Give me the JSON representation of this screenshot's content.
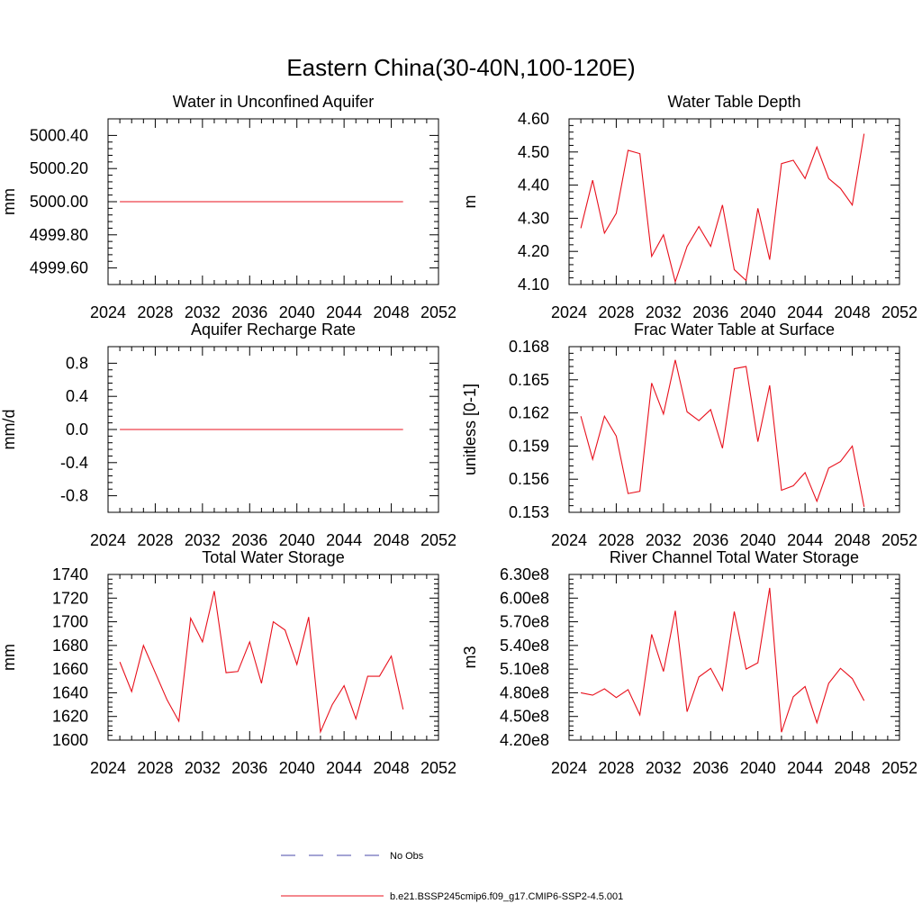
{
  "figure": {
    "title": "Eastern China(30-40N,100-120E)",
    "legend": [
      {
        "label": "No Obs",
        "style": "dashed",
        "color": "#4a4aa8"
      },
      {
        "label": "b.e21.BSSP245cmip6.f09_g17.CMIP6-SSP2-4.5.001",
        "style": "solid",
        "color": "#e8101c"
      }
    ]
  },
  "chart_data": [
    {
      "type": "line",
      "title": "Water in Unconfined Aquifer",
      "xlabel": "",
      "ylabel": "mm",
      "xlim": [
        2024,
        2052
      ],
      "ylim": [
        4999.5,
        5000.5
      ],
      "xticks": [
        2024,
        2028,
        2032,
        2036,
        2040,
        2044,
        2048,
        2052
      ],
      "yticks": [
        4999.6,
        4999.8,
        5000.0,
        5000.2,
        5000.4
      ],
      "ytick_labels": [
        "4999.60",
        "4999.80",
        "5000.00",
        "5000.20",
        "5000.40"
      ],
      "x": [
        2025,
        2026,
        2027,
        2028,
        2029,
        2030,
        2031,
        2032,
        2033,
        2034,
        2035,
        2036,
        2037,
        2038,
        2039,
        2040,
        2041,
        2042,
        2043,
        2044,
        2045,
        2046,
        2047,
        2048,
        2049
      ],
      "series": [
        {
          "name": "b.e21.BSSP245cmip6.f09_g17.CMIP6-SSP2-4.5.001",
          "color": "#e8101c",
          "values": [
            5000,
            5000,
            5000,
            5000,
            5000,
            5000,
            5000,
            5000,
            5000,
            5000,
            5000,
            5000,
            5000,
            5000,
            5000,
            5000,
            5000,
            5000,
            5000,
            5000,
            5000,
            5000,
            5000,
            5000,
            5000
          ]
        }
      ]
    },
    {
      "type": "line",
      "title": "Water Table Depth",
      "xlabel": "",
      "ylabel": "m",
      "xlim": [
        2024,
        2052
      ],
      "ylim": [
        4.1,
        4.6
      ],
      "xticks": [
        2024,
        2028,
        2032,
        2036,
        2040,
        2044,
        2048,
        2052
      ],
      "yticks": [
        4.1,
        4.2,
        4.3,
        4.4,
        4.5,
        4.6
      ],
      "ytick_labels": [
        "4.10",
        "4.20",
        "4.30",
        "4.40",
        "4.50",
        "4.60"
      ],
      "x": [
        2025,
        2026,
        2027,
        2028,
        2029,
        2030,
        2031,
        2032,
        2033,
        2034,
        2035,
        2036,
        2037,
        2038,
        2039,
        2040,
        2041,
        2042,
        2043,
        2044,
        2045,
        2046,
        2047,
        2048,
        2049
      ],
      "series": [
        {
          "name": "b.e21.BSSP245cmip6.f09_g17.CMIP6-SSP2-4.5.001",
          "color": "#e8101c",
          "values": [
            4.27,
            4.415,
            4.255,
            4.315,
            4.505,
            4.495,
            4.185,
            4.25,
            4.108,
            4.215,
            4.275,
            4.215,
            4.34,
            4.145,
            4.112,
            4.33,
            4.175,
            4.465,
            4.475,
            4.42,
            4.515,
            4.42,
            4.39,
            4.34,
            4.555
          ]
        }
      ]
    },
    {
      "type": "line",
      "title": "Aquifer Recharge Rate",
      "xlabel": "",
      "ylabel": "mm/d",
      "xlim": [
        2024,
        2052
      ],
      "ylim": [
        -1.0,
        1.0
      ],
      "xticks": [
        2024,
        2028,
        2032,
        2036,
        2040,
        2044,
        2048,
        2052
      ],
      "yticks": [
        -0.8,
        -0.4,
        0.0,
        0.4,
        0.8
      ],
      "ytick_labels": [
        "-0.8",
        "-0.4",
        "0.0",
        "0.4",
        "0.8"
      ],
      "x": [
        2025,
        2026,
        2027,
        2028,
        2029,
        2030,
        2031,
        2032,
        2033,
        2034,
        2035,
        2036,
        2037,
        2038,
        2039,
        2040,
        2041,
        2042,
        2043,
        2044,
        2045,
        2046,
        2047,
        2048,
        2049
      ],
      "series": [
        {
          "name": "b.e21.BSSP245cmip6.f09_g17.CMIP6-SSP2-4.5.001",
          "color": "#e8101c",
          "values": [
            0,
            0,
            0,
            0,
            0,
            0,
            0,
            0,
            0,
            0,
            0,
            0,
            0,
            0,
            0,
            0,
            0,
            0,
            0,
            0,
            0,
            0,
            0,
            0,
            0
          ]
        }
      ]
    },
    {
      "type": "line",
      "title": "Frac Water Table at Surface",
      "xlabel": "",
      "ylabel": "unitless [0-1]",
      "xlim": [
        2024,
        2052
      ],
      "ylim": [
        0.153,
        0.168
      ],
      "xticks": [
        2024,
        2028,
        2032,
        2036,
        2040,
        2044,
        2048,
        2052
      ],
      "yticks": [
        0.153,
        0.156,
        0.159,
        0.162,
        0.165,
        0.168
      ],
      "ytick_labels": [
        "0.153",
        "0.156",
        "0.159",
        "0.162",
        "0.165",
        "0.168"
      ],
      "x": [
        2025,
        2026,
        2027,
        2028,
        2029,
        2030,
        2031,
        2032,
        2033,
        2034,
        2035,
        2036,
        2037,
        2038,
        2039,
        2040,
        2041,
        2042,
        2043,
        2044,
        2045,
        2046,
        2047,
        2048,
        2049
      ],
      "series": [
        {
          "name": "b.e21.BSSP245cmip6.f09_g17.CMIP6-SSP2-4.5.001",
          "color": "#e8101c",
          "values": [
            0.1617,
            0.1578,
            0.1617,
            0.1599,
            0.1547,
            0.1549,
            0.1647,
            0.1619,
            0.1668,
            0.1621,
            0.1613,
            0.1623,
            0.1588,
            0.166,
            0.1662,
            0.1594,
            0.1645,
            0.155,
            0.1554,
            0.1566,
            0.154,
            0.157,
            0.1576,
            0.159,
            0.1535
          ]
        }
      ]
    },
    {
      "type": "line",
      "title": "Total Water Storage",
      "xlabel": "",
      "ylabel": "mm",
      "xlim": [
        2024,
        2052
      ],
      "ylim": [
        1600,
        1740
      ],
      "xticks": [
        2024,
        2028,
        2032,
        2036,
        2040,
        2044,
        2048,
        2052
      ],
      "yticks": [
        1600,
        1620,
        1640,
        1660,
        1680,
        1700,
        1720,
        1740
      ],
      "ytick_labels": [
        "1600",
        "1620",
        "1640",
        "1660",
        "1680",
        "1700",
        "1720",
        "1740"
      ],
      "x": [
        2025,
        2026,
        2027,
        2028,
        2029,
        2030,
        2031,
        2032,
        2033,
        2034,
        2035,
        2036,
        2037,
        2038,
        2039,
        2040,
        2041,
        2042,
        2043,
        2044,
        2045,
        2046,
        2047,
        2048,
        2049
      ],
      "series": [
        {
          "name": "b.e21.BSSP245cmip6.f09_g17.CMIP6-SSP2-4.5.001",
          "color": "#e8101c",
          "values": [
            1666,
            1641,
            1680,
            1657,
            1634,
            1616,
            1703,
            1683,
            1726,
            1657,
            1658,
            1683,
            1648,
            1700,
            1693,
            1664,
            1704,
            1607,
            1630,
            1646,
            1618,
            1654,
            1654,
            1671,
            1626
          ]
        }
      ]
    },
    {
      "type": "line",
      "title": "River Channel Total Water Storage",
      "xlabel": "",
      "ylabel": "m3",
      "xlim": [
        2024,
        2052
      ],
      "ylim": [
        420000000,
        630000000
      ],
      "xticks": [
        2024,
        2028,
        2032,
        2036,
        2040,
        2044,
        2048,
        2052
      ],
      "yticks": [
        420000000,
        450000000,
        480000000,
        510000000,
        540000000,
        570000000,
        600000000,
        630000000
      ],
      "ytick_labels": [
        "4.20e8",
        "4.50e8",
        "4.80e8",
        "5.10e8",
        "5.40e8",
        "5.70e8",
        "6.00e8",
        "6.30e8"
      ],
      "x": [
        2025,
        2026,
        2027,
        2028,
        2029,
        2030,
        2031,
        2032,
        2033,
        2034,
        2035,
        2036,
        2037,
        2038,
        2039,
        2040,
        2041,
        2042,
        2043,
        2044,
        2045,
        2046,
        2047,
        2048,
        2049
      ],
      "series": [
        {
          "name": "b.e21.BSSP245cmip6.f09_g17.CMIP6-SSP2-4.5.001",
          "color": "#e8101c",
          "values": [
            480000000,
            477000000,
            485000000,
            474000000,
            484000000,
            452000000,
            554000000,
            507000000,
            584000000,
            456000000,
            500000000,
            511000000,
            483000000,
            583000000,
            510000000,
            518000000,
            613000000,
            430000000,
            475000000,
            488000000,
            442000000,
            492000000,
            511000000,
            498000000,
            470000000
          ]
        }
      ]
    }
  ]
}
